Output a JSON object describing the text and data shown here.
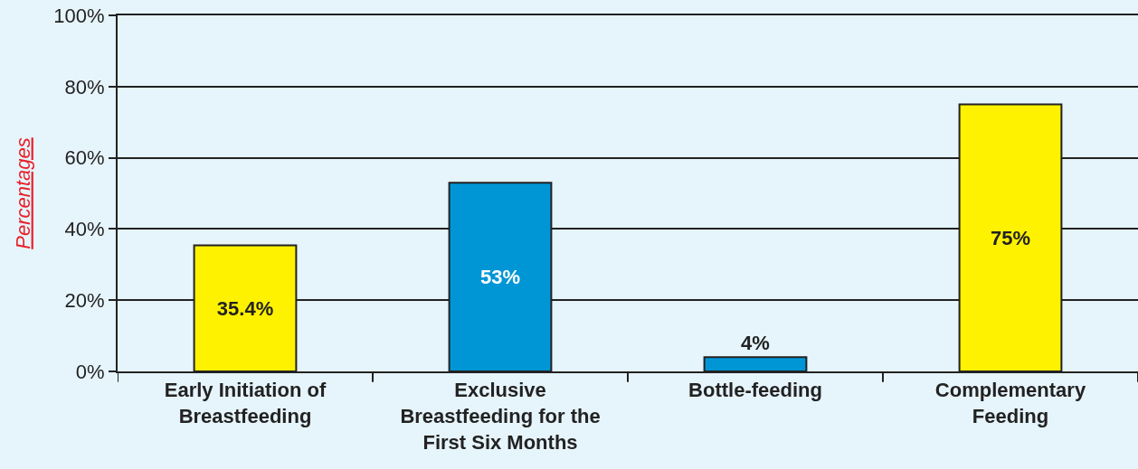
{
  "chart_data": {
    "type": "bar",
    "ylabel": "Percentages",
    "categories": [
      "Early Initiation of Breastfeeding",
      "Exclusive Breastfeeding for the First Six Months",
      "Bottle-feeding",
      "Complementary Feeding"
    ],
    "values": [
      35.4,
      53,
      4,
      75
    ],
    "colors": [
      "#fff200",
      "#0096d6",
      "#0096d6",
      "#fff200"
    ],
    "value_labels": [
      "35.4%",
      "53%",
      "4%",
      "75%"
    ],
    "ylim": [
      0,
      100
    ],
    "yticks": [
      {
        "value": 0,
        "label": "0%"
      },
      {
        "value": 20,
        "label": "20%"
      },
      {
        "value": 40,
        "label": "40%"
      },
      {
        "value": 60,
        "label": "60%"
      },
      {
        "value": 80,
        "label": "80%"
      },
      {
        "value": 100,
        "label": "100%"
      }
    ],
    "grid": "y"
  }
}
